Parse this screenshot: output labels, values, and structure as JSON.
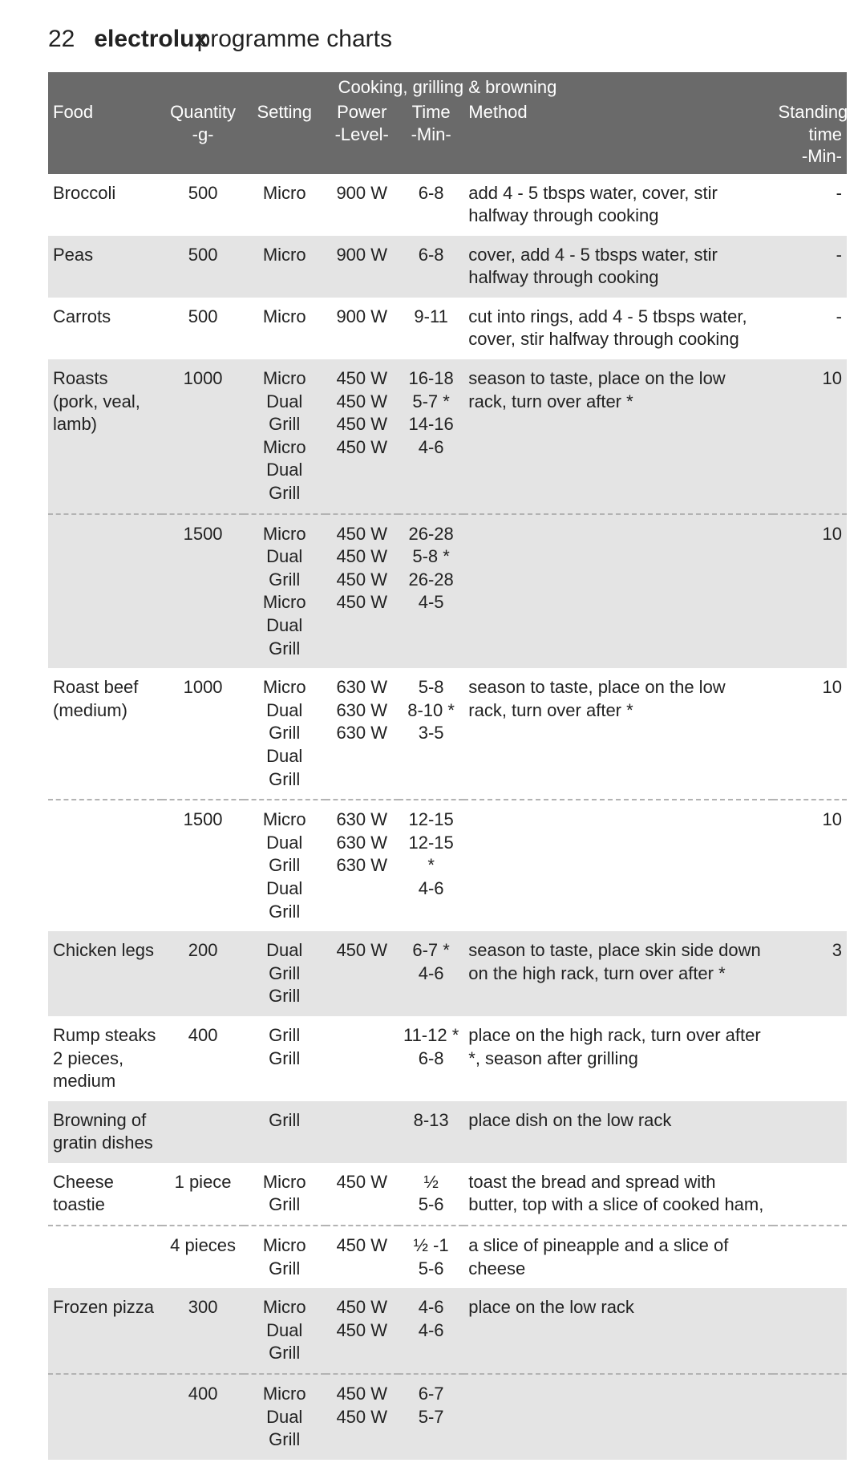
{
  "page": {
    "number": "22",
    "brand": "electrolux",
    "titleRest": " programme charts"
  },
  "table": {
    "sectionTitle": "Cooking, grilling & browning",
    "headers": {
      "food": "Food",
      "qty": "Quantity\n-g-",
      "setting": "Setting",
      "power": "Power\n-Level-",
      "time": "Time\n-Min-",
      "method": "Method",
      "standing": "Standing\ntime\n-Min-"
    },
    "rows": [
      {
        "stripe": false,
        "food": "Broccoli",
        "qty": "500",
        "setting": "Micro",
        "power": "900 W",
        "time": "6-8",
        "method": "add 4 - 5 tbsps water, cover, stir halfway through cooking",
        "standing": "-"
      },
      {
        "stripe": true,
        "food": "Peas",
        "qty": "500",
        "setting": "Micro",
        "power": "900 W",
        "time": "6-8",
        "method": "cover, add 4 - 5 tbsps water, stir halfway through cooking",
        "standing": "-"
      },
      {
        "stripe": false,
        "food": "Carrots",
        "qty": "500",
        "setting": "Micro",
        "power": "900 W",
        "time": "9-11",
        "method": "cut into rings, add 4 - 5 tbsps water, cover, stir halfway through cooking",
        "standing": "-"
      },
      {
        "stripe": true,
        "food": "Roasts\n(pork, veal,\nlamb)",
        "qty": "1000",
        "setting": "Micro\nDual Grill\nMicro\nDual Grill",
        "power": "450 W\n450 W\n450 W\n450 W",
        "time": "16-18\n5-7 *\n14-16\n4-6",
        "method": "season to taste, place on the low rack, turn over after *",
        "standing": "10"
      },
      {
        "stripe": true,
        "dash": true,
        "food": "",
        "qty": "1500",
        "setting": "Micro\nDual Grill\nMicro\nDual Grill",
        "power": "450 W\n450 W\n450 W\n450 W",
        "time": "26-28\n5-8 *\n26-28\n4-5",
        "method": "",
        "standing": "10"
      },
      {
        "stripe": false,
        "food": "Roast beef\n(medium)",
        "qty": "1000",
        "setting": "Micro\nDual Grill\nDual Grill",
        "power": "630 W\n630 W\n630 W",
        "time": "5-8\n8-10 *\n3-5",
        "method": "season to taste, place on the low rack, turn over after *",
        "standing": "10"
      },
      {
        "stripe": false,
        "dash": true,
        "food": "",
        "qty": "1500",
        "setting": "Micro\nDual Grill\nDual Grill",
        "power": "630 W\n630 W\n630 W",
        "time": "12-15\n12-15 *\n4-6",
        "method": "",
        "standing": "10"
      },
      {
        "stripe": true,
        "food": "Chicken legs",
        "qty": "200",
        "setting": "Dual Grill\nGrill",
        "power": "450 W",
        "time": "6-7 *\n4-6",
        "method": "season to taste, place skin side down on the high rack, turn over after *",
        "standing": "3"
      },
      {
        "stripe": false,
        "food": "Rump steaks\n2 pieces,\nmedium",
        "qty": "400",
        "setting": "Grill\nGrill",
        "power": "",
        "time": "11-12 *\n6-8",
        "method": "place on the high rack, turn over after *, season after grilling",
        "standing": ""
      },
      {
        "stripe": true,
        "food": "Browning of\ngratin dishes",
        "qty": "",
        "setting": "Grill",
        "power": "",
        "time": "8-13",
        "method": "place dish on the low rack",
        "standing": ""
      },
      {
        "stripe": false,
        "food": "Cheese\ntoastie",
        "qty": "1 piece",
        "setting": "Micro\nGrill",
        "power": "450 W",
        "time": "½\n5-6",
        "method": "toast the bread and spread with butter, top with a slice of cooked ham,",
        "standing": ""
      },
      {
        "stripe": false,
        "dash": true,
        "food": "",
        "qty": "4 pieces",
        "setting": "Micro\nGrill",
        "power": "450 W",
        "time": "½ -1\n5-6",
        "method": "a slice of pineapple and a slice of cheese",
        "standing": ""
      },
      {
        "stripe": true,
        "food": "Frozen pizza",
        "qty": "300",
        "setting": "Micro\nDual Grill",
        "power": "450 W\n450 W",
        "time": "4-6\n4-6",
        "method": "place on the low rack",
        "standing": ""
      },
      {
        "stripe": true,
        "dash": true,
        "food": "",
        "qty": "400",
        "setting": "Micro\nDual Grill",
        "power": "450 W\n450 W",
        "time": "6-7\n5-7",
        "method": "",
        "standing": ""
      }
    ]
  }
}
